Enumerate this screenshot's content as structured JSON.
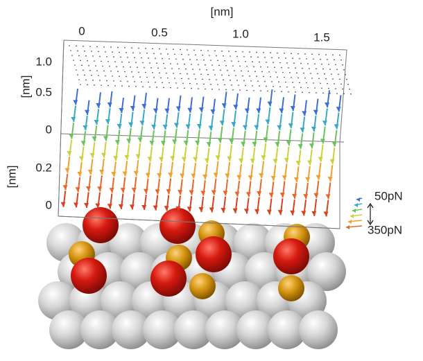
{
  "top_axis": {
    "label": "[nm]",
    "ticks": [
      "0",
      "0.5",
      "1.0",
      "1.5"
    ]
  },
  "upper_left_axis": {
    "label": "[nm]",
    "ticks": [
      "1.0",
      "0.5",
      "0"
    ]
  },
  "lower_left_axis": {
    "label": "[nm]",
    "ticks": [
      "0.2",
      "0"
    ]
  },
  "legend": {
    "min": "50pN",
    "max": "350pN"
  }
}
